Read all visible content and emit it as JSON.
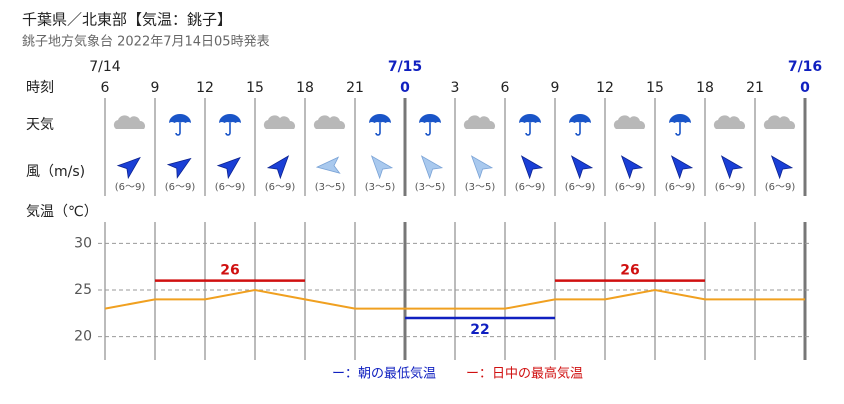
{
  "title": "千葉県／北東部【気温：銚子】",
  "subtitle": "銚子地方気象台 2022年7月14日05時発表",
  "row_labels": {
    "time": "時刻",
    "weather": "天気",
    "wind": "風（m/s)",
    "temperature": "気温（℃）"
  },
  "dates": [
    "7/14",
    "7/15",
    "7/16"
  ],
  "wind": {
    "labels": [
      "(6～9)",
      "(6～9)",
      "(6～9)",
      "(6～9)",
      "(3～5)",
      "(3～5)",
      "(3～5)",
      "(3～5)",
      "(6～9)",
      "(6～9)",
      "(6～9)",
      "(6～9)",
      "(6～9)",
      "(6～9)"
    ]
  },
  "chart_data": {
    "type": "line",
    "categories": [
      "6",
      "9",
      "12",
      "15",
      "18",
      "21",
      "0",
      "3",
      "6",
      "9",
      "12",
      "15",
      "18",
      "21",
      "0"
    ],
    "series": [
      {
        "name": "気温",
        "color": "#f0a020",
        "values": [
          23,
          24,
          24,
          25,
          24,
          23,
          23,
          23,
          23,
          24,
          24,
          25,
          24,
          24,
          24
        ]
      }
    ],
    "morning_min": {
      "name": "ー：朝の最低気温",
      "color": "#1020c0",
      "values": [
        22
      ]
    },
    "daytime_max": {
      "name": "ー：日中の最高気温",
      "color": "#d01010",
      "values": [
        26,
        26
      ]
    },
    "ylim": [
      17.5,
      32.5
    ],
    "yticks": [
      20,
      25,
      30
    ],
    "grid": true
  }
}
